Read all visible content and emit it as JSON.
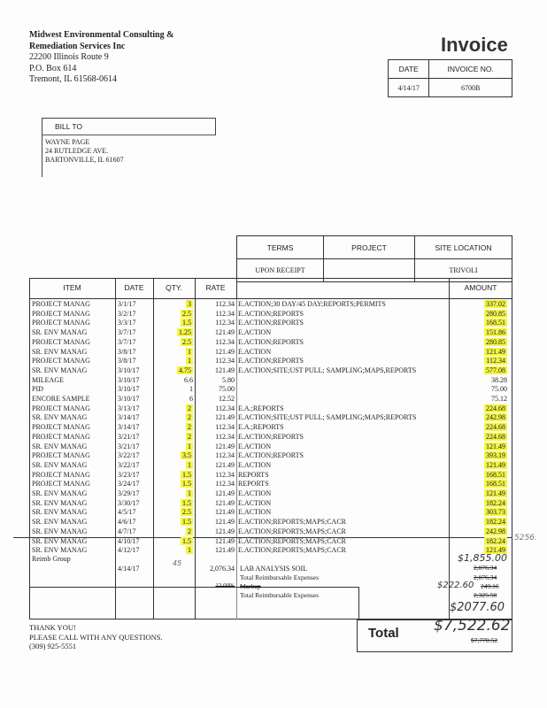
{
  "company": {
    "name_line1": "Midwest Environmental Consulting &",
    "name_line2": "Remediation Services Inc",
    "address1": "22200 Illinois Route 9",
    "address2": "P.O. Box 614",
    "address3": "Tremont, IL  61568-0614"
  },
  "title": "Invoice",
  "meta": {
    "date_label": "DATE",
    "invoice_no_label": "INVOICE NO.",
    "date": "4/14/17",
    "invoice_no": "6700B"
  },
  "bill_to": {
    "label": "BILL TO",
    "line1": "WAYNE PAGE",
    "line2": "24 RUTLEDGE AVE.",
    "line3": "BARTONVILLE, IL 61607"
  },
  "terms": {
    "terms_label": "TERMS",
    "project_label": "PROJECT",
    "site_label": "SITE LOCATION",
    "terms": "UPON RECEIPT",
    "project": "",
    "site": "TRIVOLI"
  },
  "columns": {
    "item": "ITEM",
    "date": "DATE",
    "qty": "QTY.",
    "rate": "RATE",
    "amount": "AMOUNT"
  },
  "highlight_color": "#f4f542",
  "rows": [
    {
      "item": "PROJECT MANAG",
      "date": "3/1/17",
      "qty": "3",
      "rate": "112.34",
      "desc": "E.ACTION;30 DAY/45 DAY;REPORTS;PERMITS",
      "amount": "337.02",
      "hl": true
    },
    {
      "item": "PROJECT MANAG",
      "date": "3/2/17",
      "qty": "2.5",
      "rate": "112.34",
      "desc": "E.ACTION;REPORTS",
      "amount": "280.85",
      "hl": true
    },
    {
      "item": "PROJECT MANAG",
      "date": "3/3/17",
      "qty": "1.5",
      "rate": "112.34",
      "desc": "E.ACTION;REPORTS",
      "amount": "168.51",
      "hl": true
    },
    {
      "item": "SR. ENV MANAG",
      "date": "3/7/17",
      "qty": "1.25",
      "rate": "121.49",
      "desc": "E.ACTION",
      "amount": "151.86",
      "hl": true
    },
    {
      "item": "PROJECT MANAG",
      "date": "3/7/17",
      "qty": "2.5",
      "rate": "112.34",
      "desc": "E.ACTION;REPORTS",
      "amount": "280.85",
      "hl": true
    },
    {
      "item": "SR. ENV MANAG",
      "date": "3/8/17",
      "qty": "1",
      "rate": "121.49",
      "desc": "E.ACTION",
      "amount": "121.49",
      "hl": true
    },
    {
      "item": "PROJECT MANAG",
      "date": "3/8/17",
      "qty": "1",
      "rate": "112.34",
      "desc": "E.ACTION;REPORTS",
      "amount": "112.34",
      "hl": true
    },
    {
      "item": "SR. ENV MANAG",
      "date": "3/10/17",
      "qty": "4.75",
      "rate": "121.49",
      "desc": "E.ACTION;SITE;UST PULL; SAMPLING;MAPS,REPORTS",
      "amount": "577.08",
      "hl": true
    },
    {
      "item": "MILEAGE",
      "date": "3/10/17",
      "qty": "6.6",
      "rate": "5.80",
      "desc": "",
      "amount": "38.28",
      "hl": false
    },
    {
      "item": "PID",
      "date": "3/10/17",
      "qty": "1",
      "rate": "75.00",
      "desc": "",
      "amount": "75.00",
      "hl": false
    },
    {
      "item": "ENCORE SAMPLE",
      "date": "3/10/17",
      "qty": "6",
      "rate": "12.52",
      "desc": "",
      "amount": "75.12",
      "hl": false
    },
    {
      "item": "PROJECT MANAG",
      "date": "3/13/17",
      "qty": "2",
      "rate": "112.34",
      "desc": "E.A.;REPORTS",
      "amount": "224.68",
      "hl": true
    },
    {
      "item": "SR. ENV MANAG",
      "date": "3/14/17",
      "qty": "2",
      "rate": "121.49",
      "desc": "E.ACTION;SITE;UST PULL; SAMPLING;MAPS;REPORTS",
      "amount": "242.98",
      "hl": true
    },
    {
      "item": "PROJECT MANAG",
      "date": "3/14/17",
      "qty": "2",
      "rate": "112.34",
      "desc": "E.A.;REPORTS",
      "amount": "224.68",
      "hl": true
    },
    {
      "item": "PROJECT MANAG",
      "date": "3/21/17",
      "qty": "2",
      "rate": "112.34",
      "desc": "E.ACTION;REPORTS",
      "amount": "224.68",
      "hl": true
    },
    {
      "item": "SR. ENV MANAG",
      "date": "3/21/17",
      "qty": "1",
      "rate": "121.49",
      "desc": "E.ACTION",
      "amount": "121.49",
      "hl": true
    },
    {
      "item": "PROJECT MANAG",
      "date": "3/22/17",
      "qty": "3.5",
      "rate": "112.34",
      "desc": "E.ACTION;REPORTS",
      "amount": "393.19",
      "hl": true
    },
    {
      "item": "SR. ENV MANAG",
      "date": "3/22/17",
      "qty": "1",
      "rate": "121.49",
      "desc": "E.ACTION",
      "amount": "121.49",
      "hl": true
    },
    {
      "item": "PROJECT MANAG",
      "date": "3/23/17",
      "qty": "1.5",
      "rate": "112.34",
      "desc": "REPORTS",
      "amount": "168.51",
      "hl": true
    },
    {
      "item": "PROJECT MANAG",
      "date": "3/24/17",
      "qty": "1.5",
      "rate": "112.34",
      "desc": "REPORTS",
      "amount": "168.51",
      "hl": true
    },
    {
      "item": "SR. ENV MANAG",
      "date": "3/29/17",
      "qty": "1",
      "rate": "121.49",
      "desc": "E.ACTION",
      "amount": "121.49",
      "hl": true
    },
    {
      "item": "SR. ENV MANAG",
      "date": "3/30/17",
      "qty": "1.5",
      "rate": "121.49",
      "desc": "E.ACTION",
      "amount": "182.24",
      "hl": true
    },
    {
      "item": "SR. ENV MANAG",
      "date": "4/5/17",
      "qty": "2.5",
      "rate": "121.49",
      "desc": "E.ACTION",
      "amount": "303.73",
      "hl": true
    },
    {
      "item": "SR. ENV MANAG",
      "date": "4/6/17",
      "qty": "1.5",
      "rate": "121.49",
      "desc": "E.ACTION;REPORTS;MAPS;CACR",
      "amount": "182.24",
      "hl": true
    },
    {
      "item": "SR. ENV MANAG",
      "date": "4/7/17",
      "qty": "2",
      "rate": "121.49",
      "desc": "E.ACTION;REPORTS;MAPS;CACR",
      "amount": "242.98",
      "hl": true
    },
    {
      "item": "SR. ENV MANAG",
      "date": "4/10/17",
      "qty": "1.5",
      "rate": "121.49",
      "desc": "E.ACTION;REPORTS;MAPS;CACR",
      "amount": "182.24",
      "hl": true
    },
    {
      "item": "SR. ENV MANAG",
      "date": "4/12/17",
      "qty": "1",
      "rate": "121.49",
      "desc": "E.ACTION;REPORTS;MAPS;CACR",
      "amount": "121.49",
      "hl": true
    }
  ],
  "reimb": {
    "group": "Reimb Group",
    "date": "4/14/17",
    "rate": "2,076.34",
    "desc": "LAB ANALYSIS SOIL",
    "amount_struck": "2,076.34",
    "total_label": "Total Reimbursable Expenses",
    "total_struck": "2,076.34",
    "markup_rate": "12.00%",
    "markup_label": "Markup",
    "markup_struck": "249.16",
    "total2_label": "Total Reimbursable Expenses",
    "total2_struck": "2,325.50"
  },
  "handwritten": {
    "qty_note": "45",
    "margin_note": "5256.",
    "subtotal": "$1,855.00",
    "markup": "$222.60",
    "reimb_total": "$2077.60",
    "grand_total": "$7,522.62"
  },
  "total": {
    "label": "Total",
    "struck": "$7,770.52"
  },
  "footer": {
    "line1": "THANK YOU!",
    "line2": "PLEASE CALL WITH ANY QUESTIONS.",
    "line3": "(309) 925-5551"
  }
}
